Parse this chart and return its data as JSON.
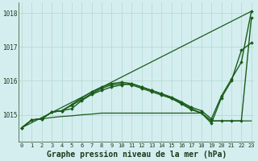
{
  "title": "Graphe pression niveau de la mer (hPa)",
  "xlabel_hours": [
    0,
    1,
    2,
    3,
    4,
    5,
    6,
    7,
    8,
    9,
    10,
    11,
    12,
    13,
    14,
    15,
    16,
    17,
    18,
    19,
    20,
    21,
    22,
    23
  ],
  "ylim": [
    1014.2,
    1018.3
  ],
  "yticks": [
    1015,
    1016,
    1017,
    1018
  ],
  "background_color": "#d4eef0",
  "grid_color": "#b0d8cc",
  "line_colors": [
    "#1a5c1a",
    "#1a5c1a",
    "#1a5c1a",
    "#1a5c1a"
  ],
  "lines": [
    {
      "x": [
        0,
        23
      ],
      "y": [
        1014.62,
        1018.05
      ],
      "marker": null,
      "lw": 0.9
    },
    {
      "x": [
        0,
        1,
        2,
        3,
        4,
        5,
        6,
        7,
        8,
        9,
        10,
        11,
        12,
        13,
        14,
        15,
        16,
        17,
        18,
        19,
        20,
        21,
        22,
        23
      ],
      "y": [
        1014.62,
        1014.85,
        1014.88,
        1015.08,
        1015.12,
        1015.18,
        1015.42,
        1015.6,
        1015.72,
        1015.82,
        1015.88,
        1015.92,
        1015.82,
        1015.72,
        1015.62,
        1015.5,
        1015.35,
        1015.18,
        1015.05,
        1014.82,
        1014.82,
        1014.82,
        1014.82,
        1017.85
      ],
      "marker": "D",
      "lw": 1.0
    },
    {
      "x": [
        0,
        1,
        2,
        3,
        4,
        5,
        6,
        7,
        8,
        9,
        10,
        11,
        12,
        13,
        14,
        15,
        16,
        17,
        18,
        19,
        20,
        21,
        22,
        23
      ],
      "y": [
        1014.62,
        1014.85,
        1014.88,
        1014.92,
        1014.95,
        1014.97,
        1015.0,
        1015.02,
        1015.05,
        1015.05,
        1015.05,
        1015.05,
        1015.05,
        1015.05,
        1015.05,
        1015.05,
        1015.05,
        1015.05,
        1015.05,
        1014.82,
        1014.82,
        1014.82,
        1014.82,
        1014.82
      ],
      "marker": null,
      "lw": 0.9
    },
    {
      "x": [
        0,
        1,
        2,
        3,
        4,
        5,
        6,
        7,
        8,
        9,
        10,
        11,
        12,
        13,
        14,
        15,
        16,
        17,
        18,
        19,
        20,
        21,
        22,
        23
      ],
      "y": [
        1014.62,
        1014.85,
        1014.88,
        1015.08,
        1015.12,
        1015.28,
        1015.45,
        1015.62,
        1015.78,
        1015.88,
        1015.92,
        1015.88,
        1015.78,
        1015.68,
        1015.58,
        1015.48,
        1015.32,
        1015.15,
        1015.05,
        1014.75,
        1015.5,
        1016.0,
        1016.9,
        1017.12
      ],
      "marker": "D",
      "lw": 1.0
    },
    {
      "x": [
        0,
        1,
        2,
        3,
        4,
        5,
        6,
        7,
        8,
        9,
        10,
        11,
        12,
        13,
        14,
        15,
        16,
        17,
        18,
        19,
        20,
        21,
        22,
        23
      ],
      "y": [
        1014.62,
        1014.85,
        1014.88,
        1015.08,
        1015.12,
        1015.3,
        1015.5,
        1015.68,
        1015.82,
        1015.92,
        1015.96,
        1015.92,
        1015.82,
        1015.72,
        1015.62,
        1015.52,
        1015.38,
        1015.22,
        1015.12,
        1014.88,
        1015.55,
        1016.05,
        1016.55,
        1018.05
      ],
      "marker": "D",
      "lw": 1.0
    }
  ],
  "title_fontsize": 7.0,
  "tick_fontsize": 5.5
}
